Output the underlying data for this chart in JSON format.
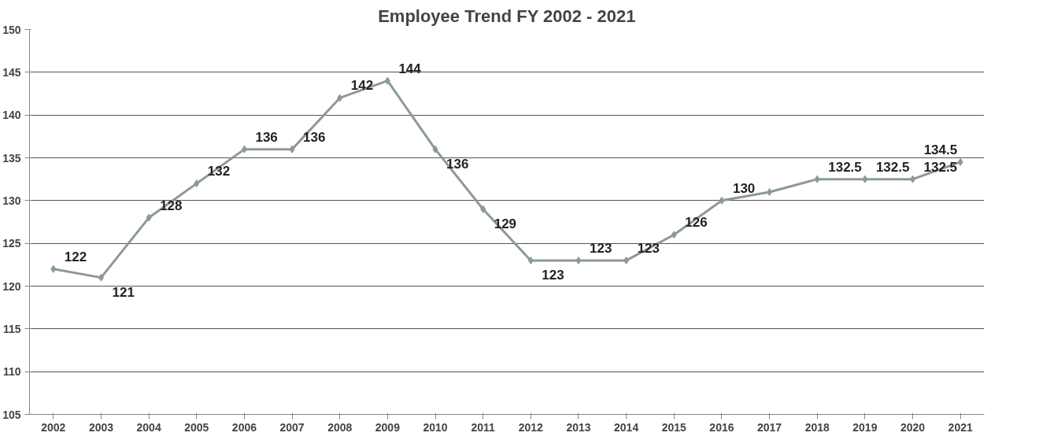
{
  "chart_data": {
    "type": "line",
    "title": "Employee Trend FY 2002 - 2021",
    "categories": [
      "2002",
      "2003",
      "2004",
      "2005",
      "2006",
      "2007",
      "2008",
      "2009",
      "2010",
      "2011",
      "2012",
      "2013",
      "2014",
      "2015",
      "2016",
      "2017",
      "2018",
      "2019",
      "2020",
      "2021"
    ],
    "series": [
      {
        "color": "#8c9a94",
        "values": [
          122,
          121,
          128,
          132,
          136,
          136,
          142,
          144,
          136,
          129,
          123,
          123,
          123,
          126,
          130,
          131,
          132.5,
          132.5,
          132.5,
          134.5
        ],
        "value_labels": [
          "122",
          "121",
          "128",
          "132",
          "136",
          "136",
          "142",
          "144",
          "136",
          "129",
          "123",
          "123",
          "123",
          "126",
          "130",
          null,
          "132.5",
          "132.5",
          "132.5",
          "134.5"
        ]
      }
    ],
    "ylim": [
      105,
      150
    ],
    "yticks": [
      105,
      110,
      115,
      120,
      125,
      130,
      135,
      140,
      145,
      150
    ],
    "grid": "y",
    "marker": "diamond",
    "line_style": "solid"
  }
}
